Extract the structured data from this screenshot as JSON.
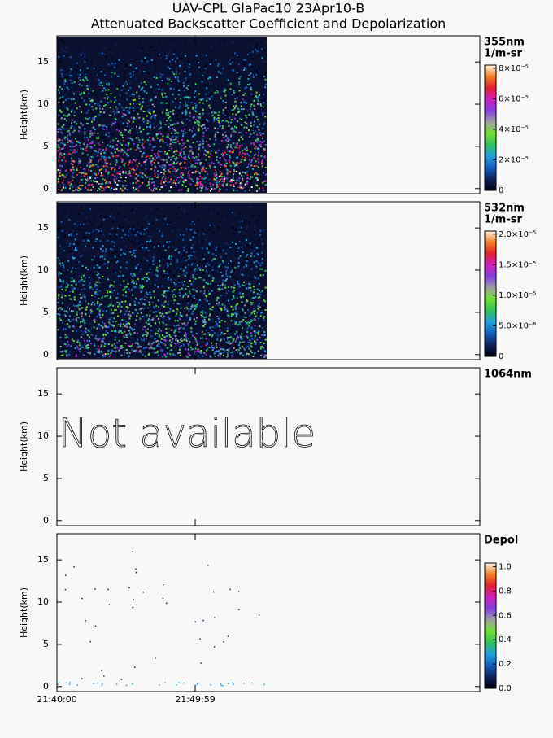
{
  "chart_data": [
    {
      "type": "heatmap",
      "title": "UAV-CPL GlaPac10 23Apr10-B",
      "subtitle": "Attenuated Backscatter Coefficient and Depolarization",
      "label": "355nm",
      "units": "1/m-sr",
      "ylabel": "Height(km)",
      "ylim": [
        -0.6,
        18.1
      ],
      "yticks": [
        0,
        5,
        10,
        15
      ],
      "xlim": [
        0,
        1832
      ],
      "xticks": [
        {
          "value": 0,
          "label": "21:40:00"
        },
        {
          "value": 599,
          "label": "21:49:59"
        }
      ],
      "data_xlim": [
        0,
        909
      ],
      "colormap": [
        "#000010",
        "#10205a",
        "#1060c0",
        "#20a0e0",
        "#30c060",
        "#70e030",
        "#a0a0a0",
        "#8040e0",
        "#d020c0",
        "#e02030",
        "#f08020",
        "#fff0e0"
      ],
      "clim": [
        0,
        8.2e-05
      ],
      "cticks": [
        0,
        {
          "value": 2e-05,
          "label": "2×10⁻⁵"
        },
        {
          "value": 4e-05,
          "label": "4×10⁻⁵"
        },
        {
          "value": 6e-05,
          "label": "6×10⁻⁵"
        },
        {
          "value": 8e-05,
          "label": "8×10⁻⁵"
        }
      ]
    },
    {
      "type": "heatmap",
      "label": "532nm",
      "units": "1/m-sr",
      "ylabel": "Height(km)",
      "ylim": [
        -0.6,
        18.1
      ],
      "yticks": [
        0,
        5,
        10,
        15
      ],
      "xlim": [
        0,
        1832
      ],
      "xticks": [
        {
          "value": 0,
          "label": "21:40:00"
        },
        {
          "value": 599,
          "label": "21:49:59"
        }
      ],
      "data_xlim": [
        0,
        909
      ],
      "colormap": [
        "#000010",
        "#10205a",
        "#1060c0",
        "#20a0e0",
        "#30c060",
        "#70e030",
        "#a0a0a0",
        "#8040e0",
        "#d020c0",
        "#e02030",
        "#f08020",
        "#fff0e0"
      ],
      "clim": [
        0,
        2.05e-05
      ],
      "cticks": [
        0,
        {
          "value": 5e-06,
          "label": "5.0×10⁻⁶"
        },
        {
          "value": 1e-05,
          "label": "1.0×10⁻⁵"
        },
        {
          "value": 1.5e-05,
          "label": "1.5×10⁻⁵"
        },
        {
          "value": 2e-05,
          "label": "2.0×10⁻⁵"
        }
      ]
    },
    {
      "type": "unavailable",
      "label": "1064nm",
      "ylabel": "Height(km)",
      "annotation": "Not available",
      "ylim": [
        -0.6,
        18.1
      ],
      "yticks": [
        0,
        5,
        10,
        15
      ],
      "xlim": [
        0,
        1832
      ],
      "xticks": [
        {
          "value": 0,
          "label": "21:40:00"
        },
        {
          "value": 599,
          "label": "21:49:59"
        }
      ]
    },
    {
      "type": "depol",
      "label": "Depol",
      "ylabel": "Height(km)",
      "ylim": [
        -0.6,
        18.1
      ],
      "yticks": [
        0,
        5,
        10,
        15
      ],
      "xlim": [
        0,
        1832
      ],
      "xticks": [
        {
          "value": 0,
          "label": "21:40:00"
        },
        {
          "value": 599,
          "label": "21:49:59"
        }
      ],
      "data_xlim": [
        0,
        909
      ],
      "colormap": [
        "#000010",
        "#10205a",
        "#1060c0",
        "#20a0e0",
        "#30c060",
        "#70e030",
        "#a0a0a0",
        "#8040e0",
        "#d020c0",
        "#e02030",
        "#f08020",
        "#fff0e0"
      ],
      "clim": [
        0,
        1.03
      ],
      "cticks": [
        {
          "value": 0,
          "label": "0.0"
        },
        {
          "value": 0.2,
          "label": "0.2"
        },
        {
          "value": 0.4,
          "label": "0.4"
        },
        {
          "value": 0.6,
          "label": "0.6"
        },
        {
          "value": 0.8,
          "label": "0.8"
        },
        {
          "value": 1,
          "label": "1.0"
        }
      ]
    }
  ]
}
